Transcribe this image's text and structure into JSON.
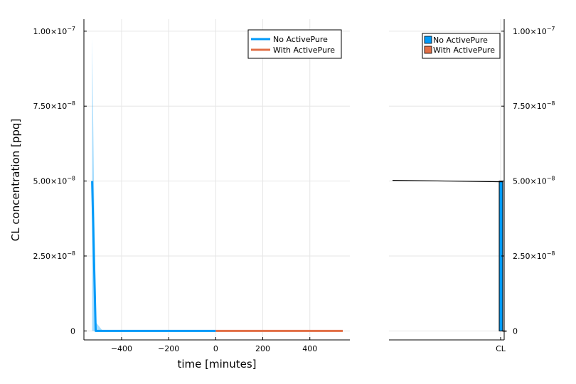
{
  "chart_data": [
    {
      "type": "line",
      "xlabel": "time [minutes]",
      "ylabel": "CL concentration [ppq]",
      "xlim": [
        -560,
        570
      ],
      "ylim": [
        -3e-09,
        1.04e-07
      ],
      "x_ticks": [
        {
          "value": -400,
          "label": "−400"
        },
        {
          "value": -200,
          "label": "−200"
        },
        {
          "value": 0,
          "label": "0"
        },
        {
          "value": 200,
          "label": "200"
        },
        {
          "value": 400,
          "label": "400"
        }
      ],
      "y_ticks": [
        {
          "value": 0,
          "label": "0",
          "exp": ""
        },
        {
          "value": 2.5e-08,
          "label": "2.50×10",
          "exp": "−8"
        },
        {
          "value": 5e-08,
          "label": "5.00×10",
          "exp": "−8"
        },
        {
          "value": 7.5e-08,
          "label": "7.50×10",
          "exp": "−8"
        },
        {
          "value": 1e-07,
          "label": "1.00×10",
          "exp": "−7"
        }
      ],
      "grid": true,
      "legend": "top-right",
      "series": [
        {
          "name": "No ActivePure",
          "color": "#009af9",
          "x": [
            -525,
            -510,
            -480,
            -400,
            -300,
            -200,
            -100,
            0
          ],
          "y": [
            5e-08,
            0,
            0,
            0,
            0,
            0,
            0,
            0
          ],
          "band_upper": [
            9.8e-08,
            3e-09,
            0,
            0,
            0,
            0,
            0,
            0
          ],
          "band_lower": [
            0,
            0,
            0,
            0,
            0,
            0,
            0,
            0
          ]
        },
        {
          "name": "With ActivePure",
          "color": "#e26f46",
          "x": [
            0,
            100,
            200,
            300,
            400,
            540
          ],
          "y": [
            0,
            0,
            0,
            0,
            0,
            0
          ]
        }
      ]
    },
    {
      "type": "bar",
      "categories": [
        "CL"
      ],
      "ylim": [
        -3e-09,
        1.04e-07
      ],
      "y_ticks": [
        {
          "value": 0,
          "label": "0",
          "exp": ""
        },
        {
          "value": 2.5e-08,
          "label": "2.50×10",
          "exp": "−8"
        },
        {
          "value": 5e-08,
          "label": "5.00×10",
          "exp": "−8"
        },
        {
          "value": 7.5e-08,
          "label": "7.50×10",
          "exp": "−8"
        },
        {
          "value": 1e-07,
          "label": "1.00×10",
          "exp": "−7"
        }
      ],
      "y_axis_side": "right",
      "grid": true,
      "legend": "top-right",
      "series": [
        {
          "name": "No ActivePure",
          "color": "#009af9",
          "values": [
            5e-08
          ]
        },
        {
          "name": "With ActivePure",
          "color": "#e26f46",
          "values": [
            0
          ]
        }
      ]
    }
  ]
}
